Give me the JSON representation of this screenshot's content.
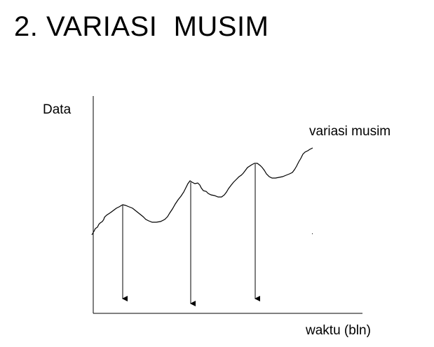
{
  "title": "2. VARIASI  MUSIM",
  "diagram": {
    "y_axis_label": "Data",
    "x_axis_label": "waktu (bln)",
    "curve_label": "variasi musim"
  }
}
